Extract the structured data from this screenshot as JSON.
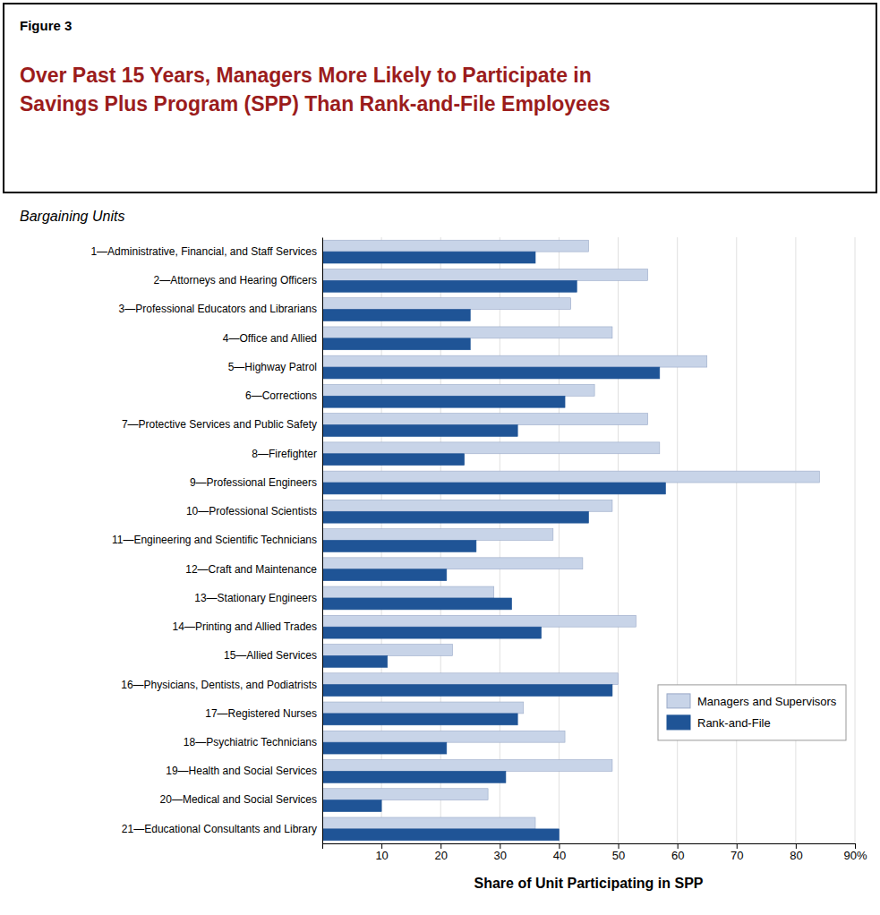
{
  "chart_data": {
    "type": "bar",
    "orientation": "horizontal",
    "annotations": [
      "Figure 3"
    ],
    "title": "Over Past 15 Years, Managers More Likely to Participate in\nSavings Plus Program (SPP) Than Rank-and-File Employees",
    "subtitle": "Bargaining Units",
    "xlabel": "Share of Unit Participating in SPP",
    "categories": [
      "1—Administrative, Financial, and Staff Services",
      "2—Attorneys and Hearing Officers",
      "3—Professional Educators and Librarians",
      "4—Office and Allied",
      "5—Highway Patrol",
      "6—Corrections",
      "7—Protective Services and Public Safety",
      "8—Firefighter",
      "9—Professional Engineers",
      "10—Professional Scientists",
      "11—Engineering and Scientific Technicians",
      "12—Craft and Maintenance",
      "13—Stationary Engineers",
      "14—Printing and Allied Trades",
      "15—Allied Services",
      "16—Physicians, Dentists, and Podiatrists",
      "17—Registered Nurses",
      "18—Psychiatric Technicians",
      "19—Health and Social Services",
      "20—Medical and Social Services",
      "21—Educational Consultants and Library"
    ],
    "series": [
      {
        "name": "Managers and Supervisors",
        "color": "#c8d4e8",
        "values": [
          45,
          55,
          42,
          49,
          65,
          46,
          55,
          57,
          84,
          49,
          39,
          44,
          29,
          53,
          22,
          50,
          34,
          41,
          49,
          28,
          36
        ]
      },
      {
        "name": "Rank-and-File",
        "color": "#1f5496",
        "values": [
          36,
          43,
          25,
          25,
          57,
          41,
          33,
          24,
          58,
          45,
          26,
          21,
          32,
          37,
          11,
          49,
          33,
          21,
          31,
          10,
          40
        ]
      }
    ],
    "xlim": [
      0,
      90
    ],
    "xticks": [
      {
        "value": 0,
        "label": null
      },
      10,
      20,
      30,
      40,
      50,
      60,
      70,
      80,
      {
        "value": 90,
        "label": "90%"
      }
    ],
    "grid": true,
    "legend": "lower right"
  }
}
